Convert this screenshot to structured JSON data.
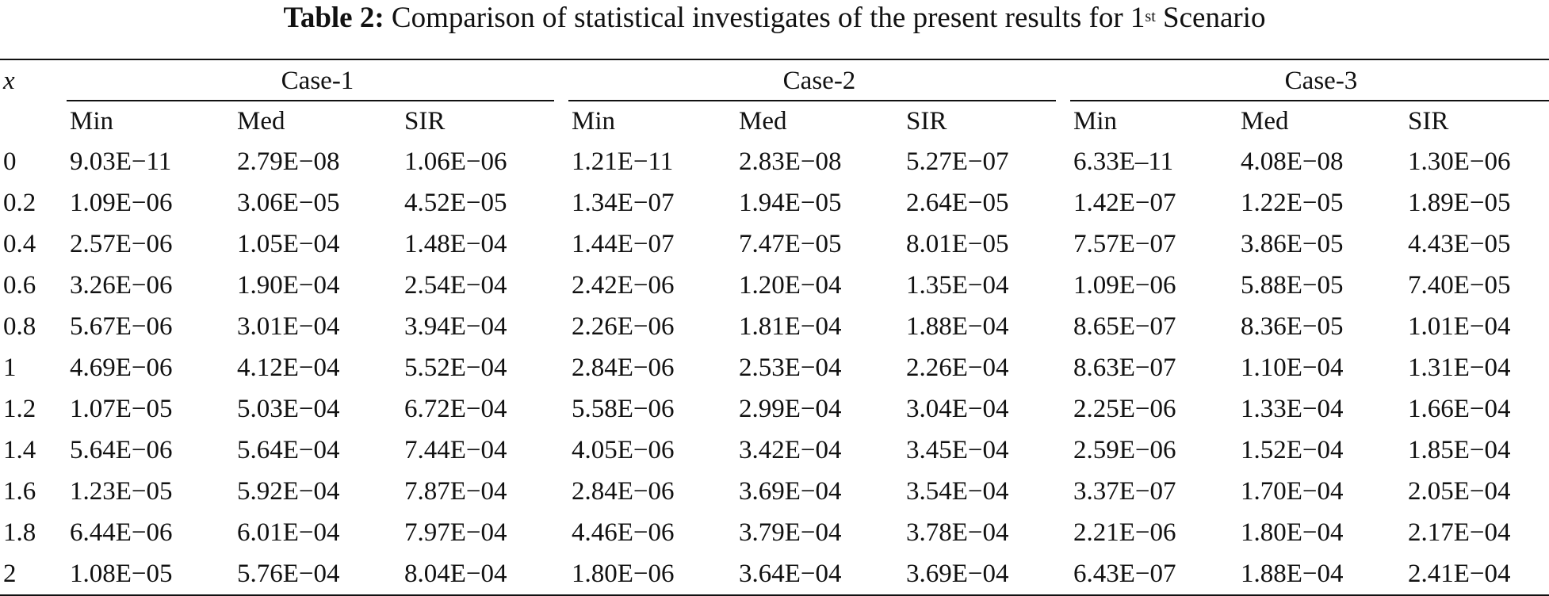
{
  "caption": {
    "label": "Table 2:",
    "text_before_sup": "Comparison of statistical investigates of the present results for 1",
    "sup": "st",
    "text_after_sup": " Scenario"
  },
  "header": {
    "x_label": "x",
    "cases": [
      "Case-1",
      "Case-2",
      "Case-3"
    ],
    "sub_columns": [
      "Min",
      "Med",
      "SIR"
    ]
  },
  "rows": [
    {
      "x": "0",
      "values": [
        "9.03E−11",
        "2.79E−08",
        "1.06E−06",
        "1.21E−11",
        "2.83E−08",
        "5.27E−07",
        "6.33E–11",
        "4.08E−08",
        "1.30E−06"
      ]
    },
    {
      "x": "0.2",
      "values": [
        "1.09E−06",
        "3.06E−05",
        "4.52E−05",
        "1.34E−07",
        "1.94E−05",
        "2.64E−05",
        "1.42E−07",
        "1.22E−05",
        "1.89E−05"
      ]
    },
    {
      "x": "0.4",
      "values": [
        "2.57E−06",
        "1.05E−04",
        "1.48E−04",
        "1.44E−07",
        "7.47E−05",
        "8.01E−05",
        "7.57E−07",
        "3.86E−05",
        "4.43E−05"
      ]
    },
    {
      "x": "0.6",
      "values": [
        "3.26E−06",
        "1.90E−04",
        "2.54E−04",
        "2.42E−06",
        "1.20E−04",
        "1.35E−04",
        "1.09E−06",
        "5.88E−05",
        "7.40E−05"
      ]
    },
    {
      "x": "0.8",
      "values": [
        "5.67E−06",
        "3.01E−04",
        "3.94E−04",
        "2.26E−06",
        "1.81E−04",
        "1.88E−04",
        "8.65E−07",
        "8.36E−05",
        "1.01E−04"
      ]
    },
    {
      "x": "1",
      "values": [
        "4.69E−06",
        "4.12E−04",
        "5.52E−04",
        "2.84E−06",
        "2.53E−04",
        "2.26E−04",
        "8.63E−07",
        "1.10E−04",
        "1.31E−04"
      ]
    },
    {
      "x": "1.2",
      "values": [
        "1.07E−05",
        "5.03E−04",
        "6.72E−04",
        "5.58E−06",
        "2.99E−04",
        "3.04E−04",
        "2.25E−06",
        "1.33E−04",
        "1.66E−04"
      ]
    },
    {
      "x": "1.4",
      "values": [
        "5.64E−06",
        "5.64E−04",
        "7.44E−04",
        "4.05E−06",
        "3.42E−04",
        "3.45E−04",
        "2.59E−06",
        "1.52E−04",
        "1.85E−04"
      ]
    },
    {
      "x": "1.6",
      "values": [
        "1.23E−05",
        "5.92E−04",
        "7.87E−04",
        "2.84E−06",
        "3.69E−04",
        "3.54E−04",
        "3.37E−07",
        "1.70E−04",
        "2.05E−04"
      ]
    },
    {
      "x": "1.8",
      "values": [
        "6.44E−06",
        "6.01E−04",
        "7.97E−04",
        "4.46E−06",
        "3.79E−04",
        "3.78E−04",
        "2.21E−06",
        "1.80E−04",
        "2.17E−04"
      ]
    },
    {
      "x": "2",
      "values": [
        "1.08E−05",
        "5.76E−04",
        "8.04E−04",
        "1.80E−06",
        "3.64E−04",
        "3.69E−04",
        "6.43E−07",
        "1.88E−04",
        "2.41E−04"
      ]
    }
  ]
}
